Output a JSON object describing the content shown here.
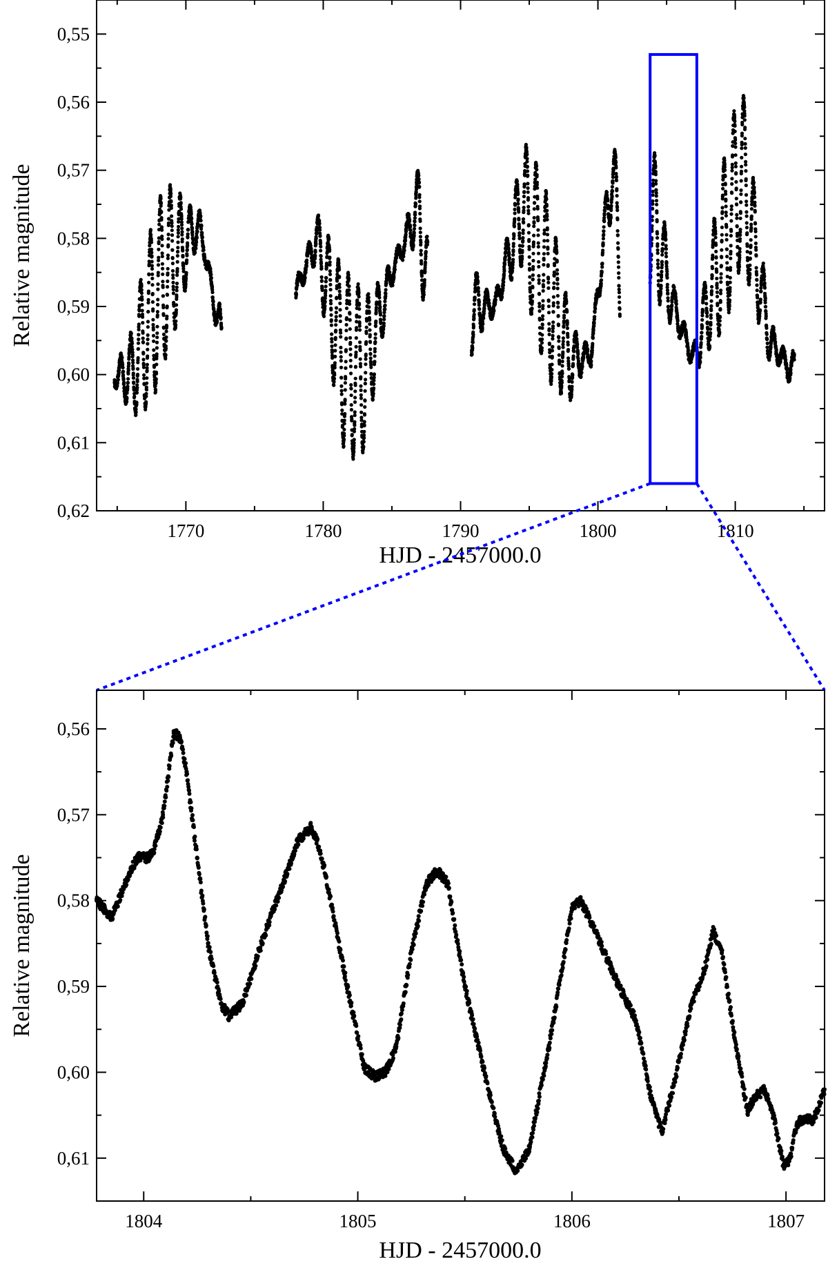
{
  "chart_data": [
    {
      "type": "scatter",
      "xlabel": "HJD - 2457000.0",
      "ylabel": "Relative magnitude",
      "xlim": [
        1763.5,
        1816.5
      ],
      "ylim": [
        0.62,
        0.545
      ],
      "y_inverted": true,
      "x_ticks": [
        1770,
        1780,
        1790,
        1800,
        1810
      ],
      "x_tick_labels": [
        "1770",
        "1780",
        "1790",
        "1800",
        "1810"
      ],
      "y_ticks": [
        0.55,
        0.56,
        0.57,
        0.58,
        0.59,
        0.6,
        0.61,
        0.62
      ],
      "y_tick_labels": [
        "0,55",
        "0,56",
        "0,57",
        "0,58",
        "0,59",
        "0,60",
        "0,61",
        "0,62"
      ],
      "marker_color": "#000000",
      "segments": [
        {
          "x_start": 1764.8,
          "x_end": 1772.6,
          "y_center": 0.585,
          "amplitude": 0.013,
          "trend": [
            [
              1764.8,
              0.6
            ],
            [
              1766.0,
              0.6
            ],
            [
              1768.5,
              0.585
            ],
            [
              1771.0,
              0.578
            ],
            [
              1772.6,
              0.595
            ]
          ]
        },
        {
          "x_start": 1778.0,
          "x_end": 1787.6,
          "y_center": 0.59,
          "amplitude": 0.013,
          "trend": [
            [
              1778.0,
              0.588
            ],
            [
              1779.5,
              0.58
            ],
            [
              1781.5,
              0.598
            ],
            [
              1783.0,
              0.6
            ],
            [
              1785.0,
              0.585
            ],
            [
              1787.0,
              0.575
            ],
            [
              1787.6,
              0.59
            ]
          ]
        },
        {
          "x_start": 1790.8,
          "x_end": 1801.6,
          "y_center": 0.585,
          "amplitude": 0.013,
          "trend": [
            [
              1790.8,
              0.59
            ],
            [
              1792.5,
              0.59
            ],
            [
              1794.5,
              0.575
            ],
            [
              1796.0,
              0.585
            ],
            [
              1798.0,
              0.598
            ],
            [
              1799.5,
              0.597
            ],
            [
              1801.0,
              0.57
            ],
            [
              1801.6,
              0.582
            ]
          ]
        },
        {
          "x_start": 1803.8,
          "x_end": 1814.3,
          "y_center": 0.585,
          "amplitude": 0.013,
          "trend": [
            [
              1803.8,
              0.575
            ],
            [
              1805.5,
              0.59
            ],
            [
              1807.0,
              0.598
            ],
            [
              1809.0,
              0.582
            ],
            [
              1810.5,
              0.57
            ],
            [
              1812.5,
              0.595
            ],
            [
              1814.3,
              0.6
            ]
          ]
        }
      ],
      "zoom_box": {
        "x_range": [
          1803.8,
          1807.2
        ],
        "y_range": [
          0.553,
          0.616
        ],
        "color": "#0000ff"
      }
    },
    {
      "type": "scatter",
      "xlabel": "HJD - 2457000.0",
      "ylabel": "Relative magnitude",
      "xlim": [
        1803.78,
        1807.18
      ],
      "ylim": [
        0.615,
        0.5555
      ],
      "y_inverted": true,
      "x_ticks": [
        1804,
        1805,
        1806,
        1807
      ],
      "x_tick_labels": [
        "1804",
        "1805",
        "1806",
        "1807"
      ],
      "y_ticks": [
        0.56,
        0.57,
        0.58,
        0.59,
        0.6,
        0.61
      ],
      "y_tick_labels": [
        "0,56",
        "0,57",
        "0,58",
        "0,59",
        "0,60",
        "0,61"
      ],
      "marker_color": "#000000",
      "x": [
        1803.78,
        1803.85,
        1803.93,
        1803.97,
        1804.02,
        1804.05,
        1804.09,
        1804.14,
        1804.17,
        1804.2,
        1804.25,
        1804.3,
        1804.36,
        1804.4,
        1804.46,
        1804.55,
        1804.65,
        1804.72,
        1804.78,
        1804.81,
        1804.85,
        1804.95,
        1805.03,
        1805.08,
        1805.13,
        1805.18,
        1805.25,
        1805.32,
        1805.37,
        1805.42,
        1805.5,
        1805.6,
        1805.68,
        1805.74,
        1805.8,
        1805.9,
        1806.0,
        1806.04,
        1806.08,
        1806.15,
        1806.22,
        1806.3,
        1806.37,
        1806.42,
        1806.48,
        1806.56,
        1806.62,
        1806.66,
        1806.7,
        1806.76,
        1806.82,
        1806.85,
        1806.9,
        1806.94,
        1806.99,
        1807.02,
        1807.05,
        1807.08,
        1807.13,
        1807.18
      ],
      "y": [
        0.58,
        0.582,
        0.577,
        0.575,
        0.575,
        0.574,
        0.57,
        0.5605,
        0.561,
        0.565,
        0.575,
        0.585,
        0.592,
        0.5935,
        0.592,
        0.585,
        0.578,
        0.573,
        0.5715,
        0.573,
        0.577,
        0.59,
        0.5995,
        0.6005,
        0.6,
        0.597,
        0.586,
        0.578,
        0.5765,
        0.578,
        0.59,
        0.601,
        0.609,
        0.6115,
        0.609,
        0.596,
        0.581,
        0.58,
        0.582,
        0.586,
        0.59,
        0.594,
        0.603,
        0.607,
        0.601,
        0.592,
        0.588,
        0.5835,
        0.586,
        0.596,
        0.6045,
        0.603,
        0.602,
        0.605,
        0.611,
        0.61,
        0.606,
        0.6055,
        0.6055,
        0.602
      ]
    }
  ],
  "style": {
    "axis_color": "#000000",
    "zoom_color": "#0000ff"
  }
}
